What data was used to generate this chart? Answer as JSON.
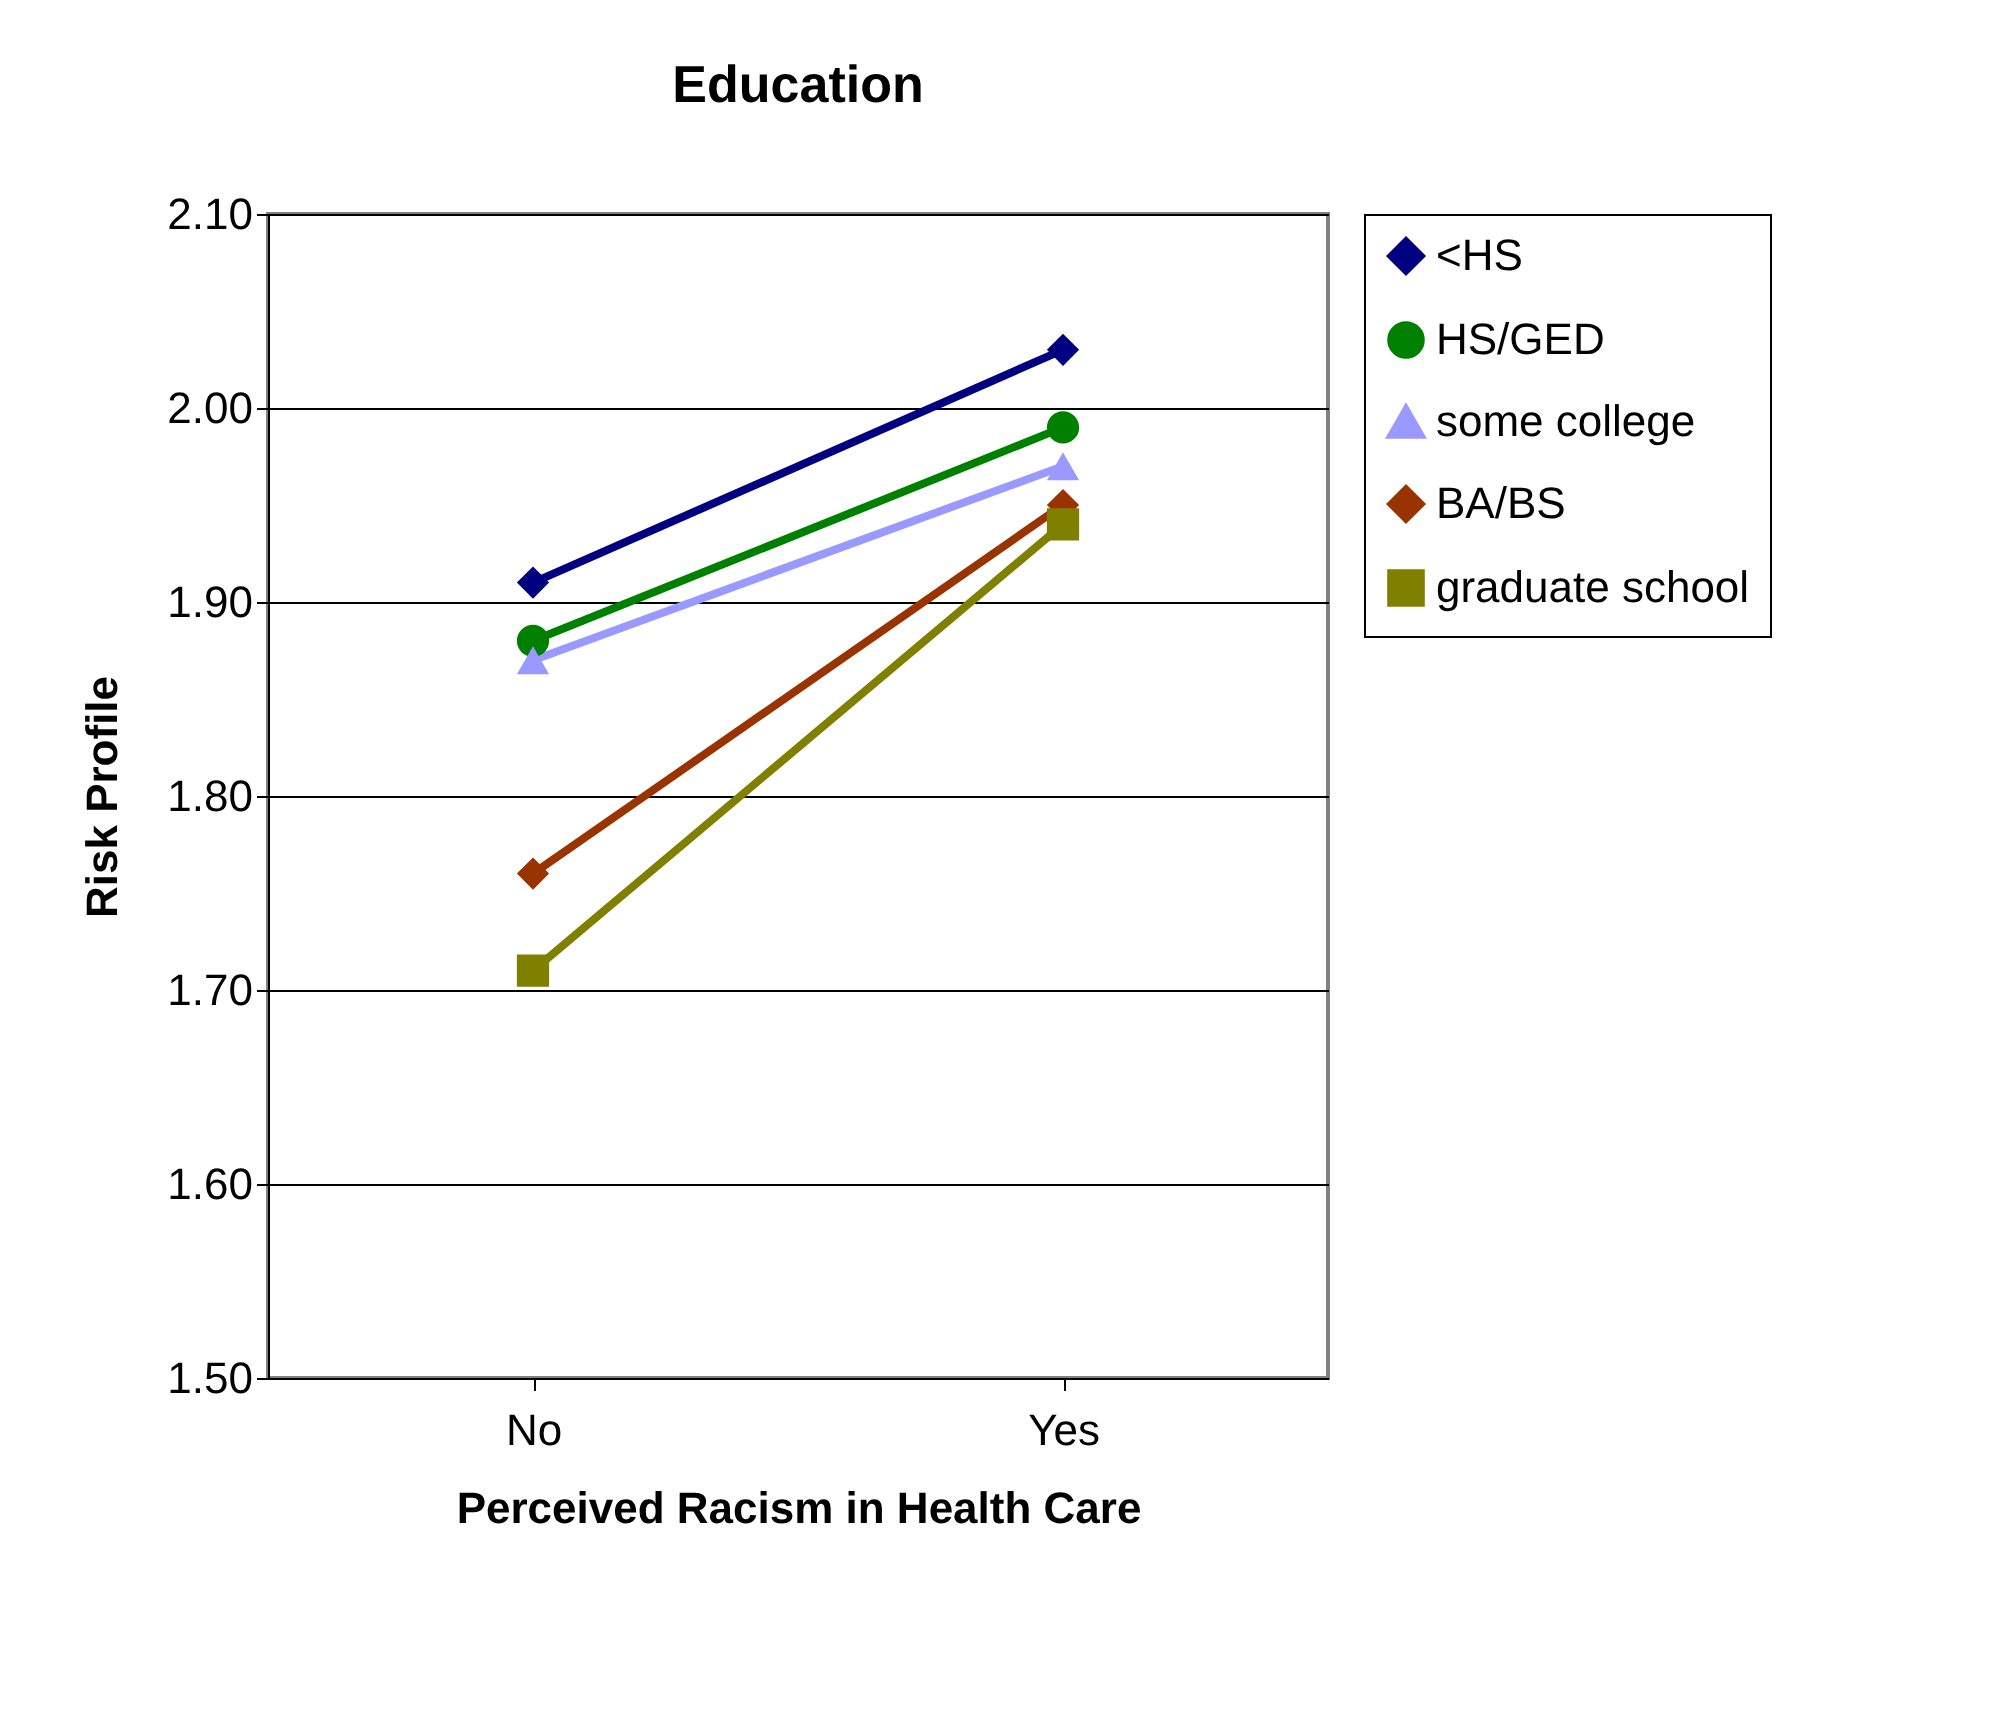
{
  "chart_data": {
    "type": "line",
    "title": "Education",
    "xlabel": "Perceived Racism in Health Care",
    "ylabel": "Risk Profile",
    "categories": [
      "No",
      "Yes"
    ],
    "series": [
      {
        "name": "<HS",
        "color": "#000080",
        "marker": "diamond",
        "values": [
          1.91,
          2.03
        ]
      },
      {
        "name": "HS/GED",
        "color": "#008000",
        "marker": "circle",
        "values": [
          1.88,
          1.99
        ]
      },
      {
        "name": "some college",
        "color": "#9999ff",
        "marker": "triangle",
        "values": [
          1.87,
          1.97
        ]
      },
      {
        "name": "BA/BS",
        "color": "#993300",
        "marker": "diamond",
        "values": [
          1.76,
          1.95
        ]
      },
      {
        "name": "graduate school",
        "color": "#808000",
        "marker": "square",
        "values": [
          1.71,
          1.94
        ]
      }
    ],
    "ylim": [
      1.5,
      2.1
    ],
    "yticks": [
      {
        "value": 1.5,
        "label": "1.50"
      },
      {
        "value": 1.6,
        "label": "1.60"
      },
      {
        "value": 1.7,
        "label": "1.70"
      },
      {
        "value": 1.8,
        "label": "1.80"
      },
      {
        "value": 1.9,
        "label": "1.90"
      },
      {
        "value": 2.0,
        "label": "2.00"
      },
      {
        "value": 2.1,
        "label": "2.10"
      }
    ],
    "grid": "y",
    "legend": "right",
    "line_style": "solid"
  }
}
